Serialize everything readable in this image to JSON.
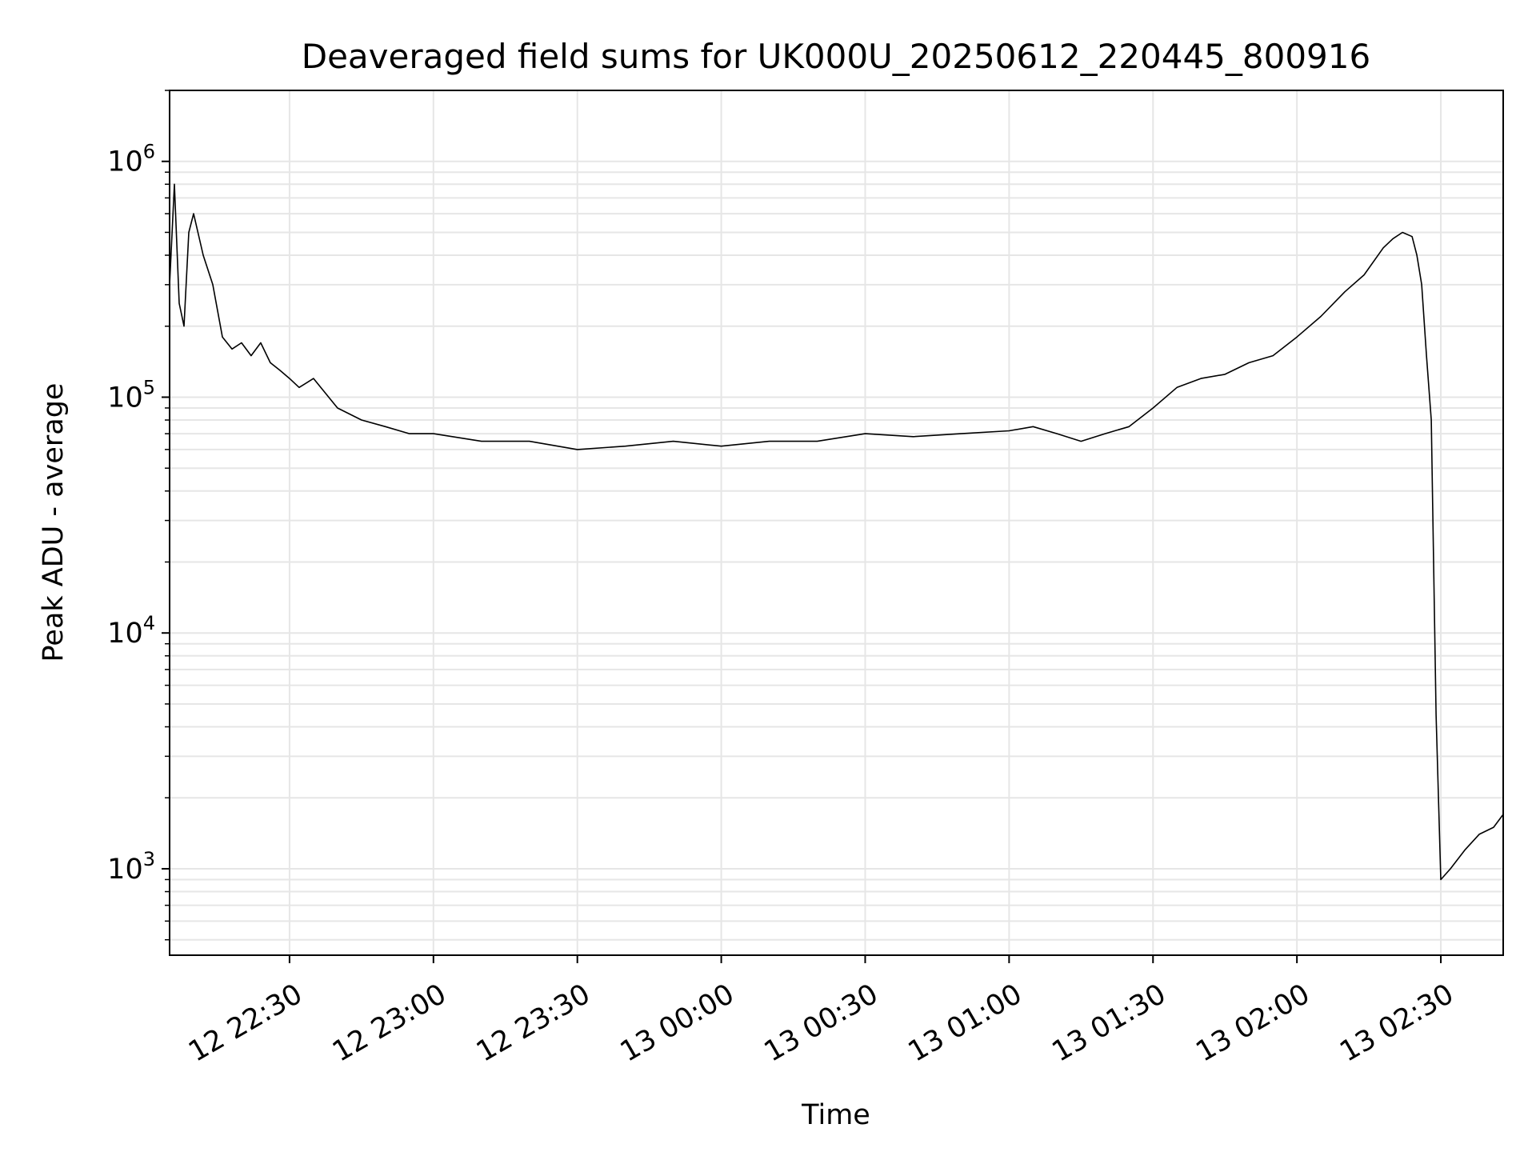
{
  "chart_data": {
    "type": "line",
    "title": "Deaveraged field sums for UK000U_20250612_220445_800916",
    "xlabel": "Time",
    "ylabel": "Peak ADU - average",
    "yscale": "log",
    "ylim": [
      430,
      2000000
    ],
    "xlim": [
      "2025-06-12 22:05",
      "2025-06-13 02:43"
    ],
    "grid": true,
    "line_color": "#000000",
    "grid_color": "#e6e6e6",
    "x_ticks": [
      {
        "value": "2025-06-12 22:30",
        "label": "12 22:30"
      },
      {
        "value": "2025-06-12 23:00",
        "label": "12 23:00"
      },
      {
        "value": "2025-06-12 23:30",
        "label": "12 23:30"
      },
      {
        "value": "2025-06-13 00:00",
        "label": "13 00:00"
      },
      {
        "value": "2025-06-13 00:30",
        "label": "13 00:30"
      },
      {
        "value": "2025-06-13 01:00",
        "label": "13 01:00"
      },
      {
        "value": "2025-06-13 01:30",
        "label": "13 01:30"
      },
      {
        "value": "2025-06-13 02:00",
        "label": "13 02:00"
      },
      {
        "value": "2025-06-13 02:30",
        "label": "13 02:30"
      }
    ],
    "y_ticks": [
      {
        "value": 1000,
        "base": "10",
        "exp": "3"
      },
      {
        "value": 10000,
        "base": "10",
        "exp": "4"
      },
      {
        "value": 100000,
        "base": "10",
        "exp": "5"
      },
      {
        "value": 1000000,
        "base": "10",
        "exp": "6"
      }
    ],
    "series": [
      {
        "x": [
          "2025-06-12 22:05",
          "2025-06-12 22:06",
          "2025-06-12 22:07",
          "2025-06-12 22:08",
          "2025-06-12 22:09",
          "2025-06-12 22:10",
          "2025-06-12 22:12",
          "2025-06-12 22:14",
          "2025-06-12 22:16",
          "2025-06-12 22:18",
          "2025-06-12 22:20",
          "2025-06-12 22:22",
          "2025-06-12 22:24",
          "2025-06-12 22:26",
          "2025-06-12 22:28",
          "2025-06-12 22:30",
          "2025-06-12 22:32",
          "2025-06-12 22:35",
          "2025-06-12 22:40",
          "2025-06-12 22:45",
          "2025-06-12 22:50",
          "2025-06-12 22:55",
          "2025-06-12 23:00",
          "2025-06-12 23:10",
          "2025-06-12 23:20",
          "2025-06-12 23:30",
          "2025-06-12 23:40",
          "2025-06-12 23:50",
          "2025-06-13 00:00",
          "2025-06-13 00:10",
          "2025-06-13 00:20",
          "2025-06-13 00:30",
          "2025-06-13 00:40",
          "2025-06-13 00:50",
          "2025-06-13 01:00",
          "2025-06-13 01:05",
          "2025-06-13 01:10",
          "2025-06-13 01:15",
          "2025-06-13 01:20",
          "2025-06-13 01:25",
          "2025-06-13 01:30",
          "2025-06-13 01:35",
          "2025-06-13 01:40",
          "2025-06-13 01:45",
          "2025-06-13 01:50",
          "2025-06-13 01:55",
          "2025-06-13 02:00",
          "2025-06-13 02:05",
          "2025-06-13 02:10",
          "2025-06-13 02:14",
          "2025-06-13 02:18",
          "2025-06-13 02:20",
          "2025-06-13 02:22",
          "2025-06-13 02:24",
          "2025-06-13 02:25",
          "2025-06-13 02:26",
          "2025-06-13 02:27",
          "2025-06-13 02:28",
          "2025-06-13 02:29",
          "2025-06-13 02:30",
          "2025-06-13 02:32",
          "2025-06-13 02:35",
          "2025-06-13 02:38",
          "2025-06-13 02:41",
          "2025-06-13 02:43"
        ],
        "y": [
          300000,
          800000,
          250000,
          200000,
          500000,
          600000,
          400000,
          300000,
          180000,
          160000,
          170000,
          150000,
          170000,
          140000,
          130000,
          120000,
          110000,
          120000,
          90000,
          80000,
          75000,
          70000,
          70000,
          65000,
          65000,
          60000,
          62000,
          65000,
          62000,
          65000,
          65000,
          70000,
          68000,
          70000,
          72000,
          75000,
          70000,
          65000,
          70000,
          75000,
          90000,
          110000,
          120000,
          125000,
          140000,
          150000,
          180000,
          220000,
          280000,
          330000,
          430000,
          470000,
          500000,
          480000,
          400000,
          300000,
          150000,
          80000,
          4500,
          900,
          1000,
          1200,
          1400,
          1500,
          1700
        ]
      }
    ]
  }
}
